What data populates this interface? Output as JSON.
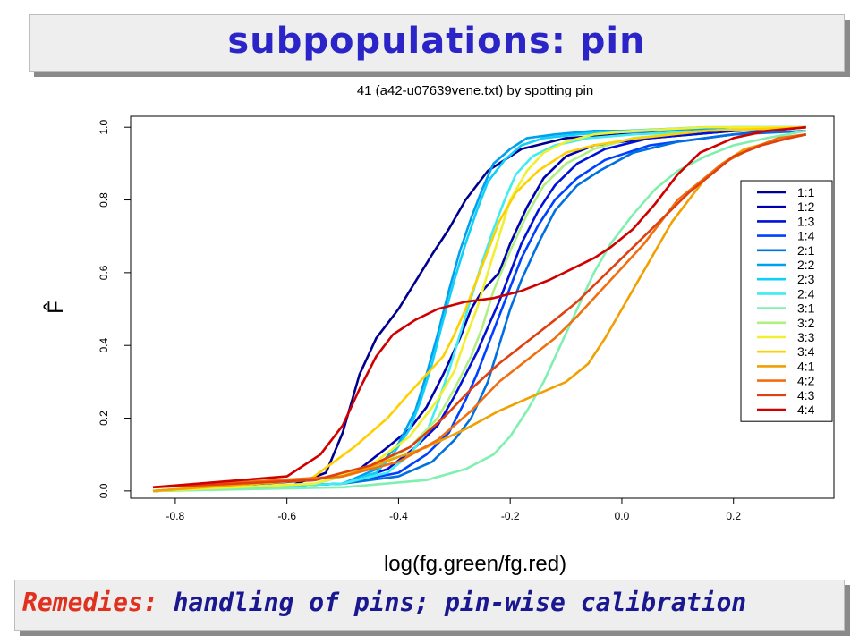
{
  "slide": {
    "title": "subpopulations: pin",
    "footer_label": "Remedies:",
    "footer_text": "handling of pins; pin-wise calibration"
  },
  "colors": {
    "title_text": "#2b25c8",
    "footer_label": "#e0301e",
    "footer_text": "#1a1890",
    "banner_bg": "#eeeeee"
  },
  "chart_data": {
    "type": "line",
    "title": "41 (a42-u07639vene.txt) by spotting pin",
    "xlabel": "log(fg.green/fg.red)",
    "ylabel": "F̂",
    "xlim": [
      -0.88,
      0.38
    ],
    "ylim": [
      -0.02,
      1.03
    ],
    "xticks": [
      -0.8,
      -0.6,
      -0.4,
      -0.2,
      0.0,
      0.2
    ],
    "xtick_labels": [
      "-0.8",
      "-0.6",
      "-0.4",
      "-0.2",
      "0.0",
      "0.2"
    ],
    "yticks": [
      0.0,
      0.2,
      0.4,
      0.6,
      0.8,
      1.0
    ],
    "ytick_labels": [
      "0.0",
      "0.2",
      "0.4",
      "0.6",
      "0.8",
      "1.0"
    ],
    "grid": false,
    "legend_position": "right",
    "series": [
      {
        "name": "1:1",
        "color": "#00008f",
        "x": [
          -0.84,
          -0.6,
          -0.53,
          -0.5,
          -0.47,
          -0.44,
          -0.42,
          -0.4,
          -0.38,
          -0.36,
          -0.34,
          -0.31,
          -0.28,
          -0.24,
          -0.18,
          -0.1,
          0.0,
          0.15,
          0.33
        ],
        "y": [
          0.0,
          0.01,
          0.05,
          0.16,
          0.32,
          0.42,
          0.46,
          0.5,
          0.55,
          0.6,
          0.65,
          0.72,
          0.8,
          0.88,
          0.94,
          0.97,
          0.98,
          0.99,
          1.0
        ]
      },
      {
        "name": "1:2",
        "color": "#0000b0",
        "x": [
          -0.84,
          -0.55,
          -0.47,
          -0.42,
          -0.38,
          -0.35,
          -0.32,
          -0.29,
          -0.27,
          -0.25,
          -0.22,
          -0.2,
          -0.17,
          -0.14,
          -0.1,
          -0.05,
          0.05,
          0.2,
          0.33
        ],
        "y": [
          0.0,
          0.03,
          0.06,
          0.12,
          0.17,
          0.23,
          0.32,
          0.42,
          0.5,
          0.55,
          0.6,
          0.68,
          0.78,
          0.86,
          0.92,
          0.95,
          0.97,
          0.99,
          1.0
        ]
      },
      {
        "name": "1:3",
        "color": "#0010d8",
        "x": [
          -0.84,
          -0.5,
          -0.42,
          -0.37,
          -0.33,
          -0.3,
          -0.28,
          -0.26,
          -0.24,
          -0.22,
          -0.2,
          -0.18,
          -0.15,
          -0.12,
          -0.08,
          -0.03,
          0.05,
          0.2,
          0.33
        ],
        "y": [
          0.0,
          0.02,
          0.06,
          0.12,
          0.18,
          0.26,
          0.32,
          0.38,
          0.45,
          0.52,
          0.6,
          0.68,
          0.77,
          0.84,
          0.9,
          0.94,
          0.97,
          0.99,
          1.0
        ]
      },
      {
        "name": "1:4",
        "color": "#0040ff",
        "x": [
          -0.84,
          -0.5,
          -0.4,
          -0.35,
          -0.31,
          -0.28,
          -0.26,
          -0.24,
          -0.22,
          -0.2,
          -0.18,
          -0.15,
          -0.12,
          -0.08,
          -0.03,
          0.05,
          0.2,
          0.33
        ],
        "y": [
          0.0,
          0.02,
          0.05,
          0.1,
          0.16,
          0.25,
          0.32,
          0.4,
          0.48,
          0.56,
          0.64,
          0.73,
          0.8,
          0.86,
          0.91,
          0.95,
          0.98,
          1.0
        ]
      },
      {
        "name": "2:1",
        "color": "#0070e0",
        "x": [
          -0.84,
          -0.5,
          -0.4,
          -0.34,
          -0.3,
          -0.27,
          -0.24,
          -0.22,
          -0.2,
          -0.18,
          -0.15,
          -0.12,
          -0.08,
          -0.04,
          0.02,
          0.1,
          0.2,
          0.33
        ],
        "y": [
          0.0,
          0.02,
          0.04,
          0.08,
          0.14,
          0.2,
          0.3,
          0.4,
          0.5,
          0.58,
          0.68,
          0.77,
          0.84,
          0.88,
          0.93,
          0.96,
          0.98,
          0.99
        ]
      },
      {
        "name": "2:2",
        "color": "#00a0f0",
        "x": [
          -0.84,
          -0.5,
          -0.44,
          -0.4,
          -0.37,
          -0.35,
          -0.33,
          -0.31,
          -0.29,
          -0.27,
          -0.25,
          -0.23,
          -0.2,
          -0.17,
          -0.12,
          -0.05,
          0.05,
          0.2,
          0.33
        ],
        "y": [
          0.0,
          0.02,
          0.06,
          0.13,
          0.22,
          0.32,
          0.43,
          0.55,
          0.66,
          0.75,
          0.83,
          0.9,
          0.94,
          0.97,
          0.98,
          0.99,
          0.99,
          1.0,
          1.0
        ]
      },
      {
        "name": "2:3",
        "color": "#10d0f8",
        "x": [
          -0.84,
          -0.5,
          -0.44,
          -0.41,
          -0.38,
          -0.36,
          -0.34,
          -0.32,
          -0.3,
          -0.28,
          -0.26,
          -0.24,
          -0.21,
          -0.18,
          -0.14,
          -0.08,
          0.0,
          0.15,
          0.33
        ],
        "y": [
          0.0,
          0.02,
          0.05,
          0.1,
          0.17,
          0.25,
          0.35,
          0.47,
          0.58,
          0.68,
          0.77,
          0.85,
          0.91,
          0.95,
          0.97,
          0.98,
          0.99,
          1.0,
          1.0
        ]
      },
      {
        "name": "2:4",
        "color": "#40ecf0",
        "x": [
          -0.84,
          -0.5,
          -0.42,
          -0.38,
          -0.35,
          -0.33,
          -0.31,
          -0.29,
          -0.27,
          -0.25,
          -0.23,
          -0.21,
          -0.19,
          -0.16,
          -0.12,
          -0.06,
          0.02,
          0.15,
          0.33
        ],
        "y": [
          0.0,
          0.02,
          0.05,
          0.1,
          0.16,
          0.24,
          0.33,
          0.43,
          0.53,
          0.63,
          0.72,
          0.8,
          0.87,
          0.92,
          0.95,
          0.97,
          0.98,
          0.99,
          1.0
        ]
      },
      {
        "name": "3:1",
        "color": "#80f0b0",
        "x": [
          -0.84,
          -0.5,
          -0.35,
          -0.28,
          -0.23,
          -0.2,
          -0.17,
          -0.14,
          -0.11,
          -0.08,
          -0.05,
          -0.02,
          0.02,
          0.06,
          0.1,
          0.15,
          0.2,
          0.26,
          0.33
        ],
        "y": [
          0.0,
          0.01,
          0.03,
          0.06,
          0.1,
          0.15,
          0.22,
          0.3,
          0.4,
          0.5,
          0.6,
          0.68,
          0.76,
          0.83,
          0.88,
          0.92,
          0.95,
          0.97,
          0.99
        ]
      },
      {
        "name": "3:2",
        "color": "#b0f080",
        "x": [
          -0.84,
          -0.55,
          -0.45,
          -0.38,
          -0.33,
          -0.3,
          -0.27,
          -0.25,
          -0.23,
          -0.2,
          -0.17,
          -0.14,
          -0.1,
          -0.05,
          0.02,
          0.15,
          0.33
        ],
        "y": [
          0.0,
          0.02,
          0.06,
          0.12,
          0.2,
          0.28,
          0.37,
          0.45,
          0.55,
          0.66,
          0.76,
          0.84,
          0.9,
          0.94,
          0.97,
          0.99,
          1.0
        ]
      },
      {
        "name": "3:3",
        "color": "#f0f030",
        "x": [
          -0.84,
          -0.55,
          -0.45,
          -0.38,
          -0.33,
          -0.3,
          -0.28,
          -0.26,
          -0.24,
          -0.22,
          -0.2,
          -0.17,
          -0.14,
          -0.1,
          -0.05,
          0.02,
          0.15,
          0.33
        ],
        "y": [
          0.0,
          0.02,
          0.07,
          0.15,
          0.25,
          0.33,
          0.42,
          0.5,
          0.6,
          0.7,
          0.8,
          0.88,
          0.93,
          0.96,
          0.98,
          0.99,
          1.0,
          1.0
        ]
      },
      {
        "name": "3:4",
        "color": "#ffd000",
        "x": [
          -0.84,
          -0.56,
          -0.48,
          -0.42,
          -0.38,
          -0.35,
          -0.32,
          -0.3,
          -0.28,
          -0.26,
          -0.24,
          -0.22,
          -0.19,
          -0.15,
          -0.1,
          -0.05,
          0.03,
          0.15,
          0.33
        ],
        "y": [
          0.0,
          0.03,
          0.12,
          0.2,
          0.27,
          0.32,
          0.37,
          0.43,
          0.5,
          0.58,
          0.66,
          0.74,
          0.82,
          0.88,
          0.93,
          0.95,
          0.97,
          0.99,
          1.0
        ]
      },
      {
        "name": "4:1",
        "color": "#f0a000",
        "x": [
          -0.84,
          -0.5,
          -0.35,
          -0.28,
          -0.22,
          -0.16,
          -0.1,
          -0.06,
          -0.03,
          0.0,
          0.03,
          0.06,
          0.09,
          0.12,
          0.15,
          0.18,
          0.22,
          0.27,
          0.33
        ],
        "y": [
          0.0,
          0.04,
          0.12,
          0.17,
          0.22,
          0.26,
          0.3,
          0.35,
          0.42,
          0.5,
          0.58,
          0.66,
          0.74,
          0.8,
          0.86,
          0.9,
          0.94,
          0.96,
          0.98
        ]
      },
      {
        "name": "4:2",
        "color": "#f07010",
        "x": [
          -0.84,
          -0.5,
          -0.4,
          -0.33,
          -0.27,
          -0.22,
          -0.17,
          -0.12,
          -0.08,
          -0.05,
          -0.02,
          0.01,
          0.04,
          0.07,
          0.1,
          0.14,
          0.18,
          0.23,
          0.28,
          0.33
        ],
        "y": [
          0.01,
          0.04,
          0.08,
          0.14,
          0.22,
          0.3,
          0.36,
          0.42,
          0.48,
          0.53,
          0.58,
          0.63,
          0.68,
          0.74,
          0.8,
          0.85,
          0.9,
          0.94,
          0.97,
          0.98
        ]
      },
      {
        "name": "4:3",
        "color": "#e04010",
        "x": [
          -0.84,
          -0.55,
          -0.45,
          -0.38,
          -0.32,
          -0.27,
          -0.22,
          -0.17,
          -0.12,
          -0.08,
          -0.04,
          0.0,
          0.04,
          0.08,
          0.12,
          0.16,
          0.2,
          0.25,
          0.3,
          0.33
        ],
        "y": [
          0.01,
          0.03,
          0.07,
          0.12,
          0.2,
          0.28,
          0.35,
          0.41,
          0.47,
          0.52,
          0.58,
          0.64,
          0.7,
          0.76,
          0.82,
          0.87,
          0.92,
          0.95,
          0.97,
          0.98
        ]
      },
      {
        "name": "4:4",
        "color": "#d00000",
        "x": [
          -0.84,
          -0.6,
          -0.54,
          -0.5,
          -0.47,
          -0.44,
          -0.41,
          -0.37,
          -0.33,
          -0.28,
          -0.23,
          -0.18,
          -0.13,
          -0.09,
          -0.05,
          -0.02,
          0.02,
          0.06,
          0.1,
          0.14,
          0.2,
          0.26,
          0.33
        ],
        "y": [
          0.01,
          0.04,
          0.1,
          0.18,
          0.28,
          0.37,
          0.43,
          0.47,
          0.5,
          0.52,
          0.53,
          0.55,
          0.58,
          0.61,
          0.64,
          0.67,
          0.72,
          0.79,
          0.87,
          0.93,
          0.97,
          0.99,
          1.0
        ]
      }
    ]
  }
}
